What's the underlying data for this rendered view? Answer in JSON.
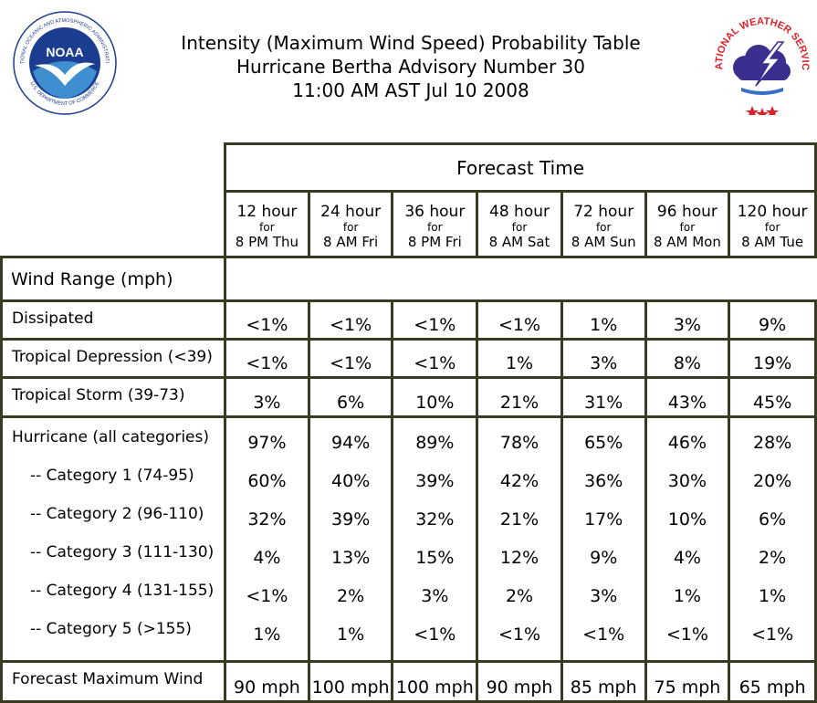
{
  "header": {
    "title_line1": "Intensity (Maximum Wind Speed) Probability Table",
    "title_line2": "Hurricane Bertha Advisory Number 30",
    "title_line3": "11:00 AM AST Jul 10 2008"
  },
  "logos": {
    "noaa_text": "NOAA",
    "noaa_ring_text": "NATIONAL OCEANIC AND ATMOSPHERIC ADMINISTRATION",
    "noaa_bottom_text": "U.S. DEPARTMENT OF COMMERCE",
    "nws_ring_text": "NATIONAL WEATHER SERVICE"
  },
  "colors": {
    "border": "#3a3a22",
    "noaa_blue": "#1a3d8f",
    "nws_red": "#d8242a"
  },
  "table": {
    "forecast_time_label": "Forecast Time",
    "wind_range_label": "Wind Range (mph)",
    "columns": [
      {
        "hour": "12 hour",
        "for": "for",
        "date": "8 PM Thu"
      },
      {
        "hour": "24 hour",
        "for": "for",
        "date": "8 AM Fri"
      },
      {
        "hour": "36 hour",
        "for": "for",
        "date": "8 PM Fri"
      },
      {
        "hour": "48 hour",
        "for": "for",
        "date": "8 AM Sat"
      },
      {
        "hour": "72 hour",
        "for": "for",
        "date": "8 AM Sun"
      },
      {
        "hour": "96 hour",
        "for": "for",
        "date": "8 AM Mon"
      },
      {
        "hour": "120 hour",
        "for": "for",
        "date": "8 AM Tue"
      }
    ],
    "rows": [
      {
        "label": "Dissipated",
        "values": [
          "<1%",
          "<1%",
          "<1%",
          "<1%",
          "1%",
          "3%",
          "9%"
        ]
      },
      {
        "label": "Tropical Depression (<39)",
        "values": [
          "<1%",
          "<1%",
          "<1%",
          "1%",
          "3%",
          "8%",
          "19%"
        ]
      },
      {
        "label": "Tropical Storm (39-73)",
        "values": [
          "3%",
          "6%",
          "10%",
          "21%",
          "31%",
          "43%",
          "45%"
        ]
      }
    ],
    "hurricane_rows": [
      {
        "label": "Hurricane (all categories)",
        "values": [
          "97%",
          "94%",
          "89%",
          "78%",
          "65%",
          "46%",
          "28%"
        ]
      },
      {
        "label": "-- Category 1 (74-95)",
        "values": [
          "60%",
          "40%",
          "39%",
          "42%",
          "36%",
          "30%",
          "20%"
        ]
      },
      {
        "label": "-- Category 2 (96-110)",
        "values": [
          "32%",
          "39%",
          "32%",
          "21%",
          "17%",
          "10%",
          "6%"
        ]
      },
      {
        "label": "-- Category 3 (111-130)",
        "values": [
          "4%",
          "13%",
          "15%",
          "12%",
          "9%",
          "4%",
          "2%"
        ]
      },
      {
        "label": "-- Category 4 (131-155)",
        "values": [
          "<1%",
          "2%",
          "3%",
          "2%",
          "3%",
          "1%",
          "1%"
        ]
      },
      {
        "label": "-- Category 5 (>155)",
        "values": [
          "1%",
          "1%",
          "<1%",
          "<1%",
          "<1%",
          "<1%",
          "<1%"
        ]
      }
    ],
    "max_wind": {
      "label": "Forecast Maximum Wind",
      "values": [
        "90 mph",
        "100 mph",
        "100 mph",
        "90 mph",
        "85 mph",
        "75 mph",
        "65 mph"
      ]
    }
  }
}
